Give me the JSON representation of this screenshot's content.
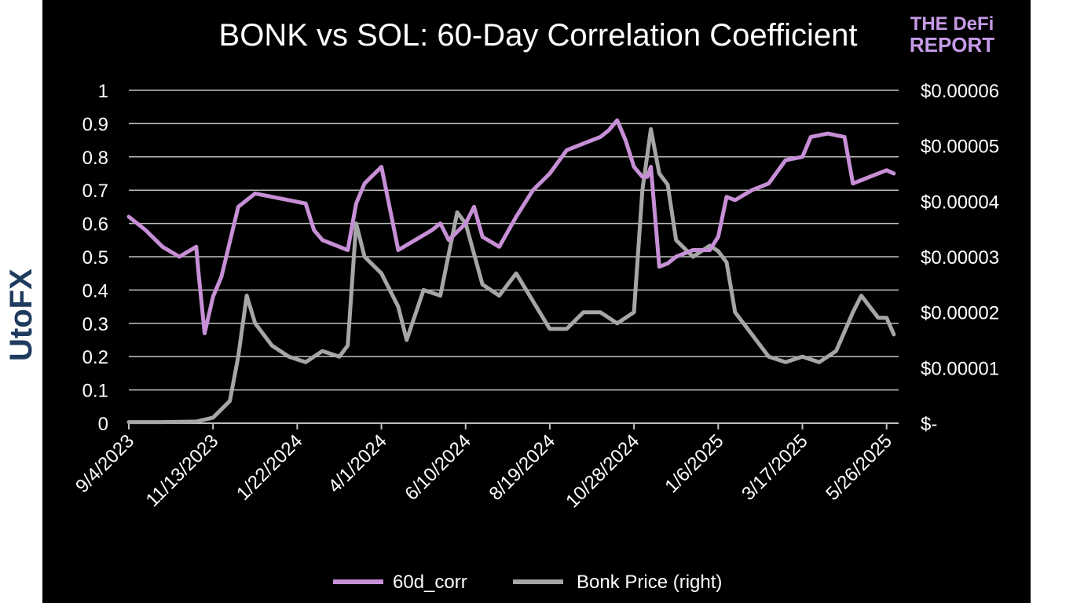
{
  "branding": {
    "logo_line1": "THE DeFi",
    "logo_line2": "REPORT",
    "logo_color": "#c79be8",
    "watermark_text": "UtoFX",
    "watermark_colors": {
      "primary": "#f08a1c",
      "secondary": "#1f3b5e"
    }
  },
  "colors": {
    "background": "#000000",
    "grid": "#bfbfbf",
    "series_corr": "#c78fd6",
    "series_price": "#a6a6a6",
    "text": "#ffffff"
  },
  "chart_data": {
    "type": "line",
    "title": "BONK vs SOL: 60-Day Correlation Coefficient",
    "x_tick_labels": [
      "9/4/2023",
      "11/13/2023",
      "1/22/2024",
      "4/1/2024",
      "6/10/2024",
      "8/19/2024",
      "10/28/2024",
      "1/6/2025",
      "3/17/2025",
      "5/26/2025"
    ],
    "x_range_days_from_first_tick": [
      0,
      640
    ],
    "y_left": {
      "ticks": [
        "1",
        "0.9",
        "0.8",
        "0.7",
        "0.6",
        "0.5",
        "0.4",
        "0.3",
        "0.2",
        "0.1",
        "0"
      ],
      "range": [
        0,
        1
      ]
    },
    "y_right": {
      "ticks": [
        "$0.00006",
        "$0.00005",
        "$0.00004",
        "$0.00003",
        "$0.00002",
        "$0.00001",
        "$-"
      ],
      "range": [
        0,
        6e-05
      ]
    },
    "grid": true,
    "legend_position": "bottom",
    "series": [
      {
        "name": "60d_corr",
        "axis": "left",
        "x": [
          "9/4/2023",
          "9/18/2023",
          "10/2/2023",
          "10/16/2023",
          "10/30/2023",
          "11/1/2023",
          "11/6/2023",
          "11/13/2023",
          "11/20/2023",
          "12/4/2023",
          "12/18/2023",
          "1/1/2024",
          "1/15/2024",
          "1/29/2024",
          "2/5/2024",
          "2/12/2024",
          "2/19/2024",
          "2/26/2024",
          "3/4/2024",
          "3/11/2024",
          "3/18/2024",
          "4/1/2024",
          "4/15/2024",
          "4/29/2024",
          "5/13/2024",
          "5/20/2024",
          "5/27/2024",
          "6/10/2024",
          "6/17/2024",
          "6/24/2024",
          "7/8/2024",
          "7/22/2024",
          "8/5/2024",
          "8/19/2024",
          "9/2/2024",
          "9/16/2024",
          "9/30/2024",
          "10/7/2024",
          "10/14/2024",
          "10/21/2024",
          "10/28/2024",
          "11/4/2024",
          "11/8/2024",
          "11/11/2024",
          "11/18/2024",
          "11/25/2024",
          "12/2/2024",
          "12/16/2024",
          "12/30/2024",
          "1/6/2025",
          "1/13/2025",
          "1/20/2025",
          "2/3/2025",
          "2/17/2025",
          "3/3/2025",
          "3/17/2025",
          "3/24/2025",
          "4/7/2025",
          "4/21/2025",
          "4/28/2025",
          "5/5/2025",
          "5/12/2025",
          "5/26/2025",
          "6/1/2025"
        ],
        "values": [
          0.62,
          0.58,
          0.53,
          0.5,
          0.53,
          0.45,
          0.27,
          0.38,
          0.44,
          0.65,
          0.69,
          0.68,
          0.67,
          0.66,
          0.58,
          0.55,
          0.54,
          0.53,
          0.52,
          0.66,
          0.72,
          0.77,
          0.52,
          0.55,
          0.58,
          0.6,
          0.55,
          0.6,
          0.65,
          0.56,
          0.53,
          0.62,
          0.7,
          0.75,
          0.82,
          0.84,
          0.86,
          0.88,
          0.91,
          0.85,
          0.77,
          0.74,
          0.74,
          0.77,
          0.47,
          0.48,
          0.5,
          0.52,
          0.52,
          0.56,
          0.68,
          0.67,
          0.7,
          0.72,
          0.79,
          0.8,
          0.86,
          0.87,
          0.86,
          0.72,
          0.73,
          0.74,
          0.76,
          0.75
        ]
      },
      {
        "name": "Bonk Price (right)",
        "axis": "right",
        "x": [
          "9/4/2023",
          "10/2/2023",
          "10/30/2023",
          "11/13/2023",
          "11/27/2023",
          "12/4/2023",
          "12/11/2023",
          "12/18/2023",
          "1/1/2024",
          "1/15/2024",
          "1/29/2024",
          "2/12/2024",
          "2/26/2024",
          "3/4/2024",
          "3/11/2024",
          "3/18/2024",
          "4/1/2024",
          "4/15/2024",
          "4/22/2024",
          "5/6/2024",
          "5/20/2024",
          "6/3/2024",
          "6/10/2024",
          "6/24/2024",
          "7/8/2024",
          "7/22/2024",
          "8/5/2024",
          "8/19/2024",
          "9/2/2024",
          "9/16/2024",
          "9/30/2024",
          "10/14/2024",
          "10/28/2024",
          "11/4/2024",
          "11/11/2024",
          "11/18/2024",
          "11/25/2024",
          "12/2/2024",
          "12/16/2024",
          "12/30/2024",
          "1/6/2025",
          "1/13/2025",
          "1/20/2025",
          "2/3/2025",
          "2/17/2025",
          "3/3/2025",
          "3/17/2025",
          "3/31/2025",
          "4/14/2025",
          "4/28/2025",
          "5/5/2025",
          "5/19/2025",
          "5/26/2025",
          "6/1/2025"
        ],
        "values": [
          2e-07,
          2e-07,
          3e-07,
          1e-06,
          4e-06,
          1.2e-05,
          2.3e-05,
          1.8e-05,
          1.4e-05,
          1.2e-05,
          1.1e-05,
          1.3e-05,
          1.2e-05,
          1.4e-05,
          3.6e-05,
          3e-05,
          2.7e-05,
          2.1e-05,
          1.5e-05,
          2.4e-05,
          2.3e-05,
          3.8e-05,
          3.6e-05,
          2.5e-05,
          2.3e-05,
          2.7e-05,
          2.2e-05,
          1.7e-05,
          1.7e-05,
          2e-05,
          2e-05,
          1.8e-05,
          2e-05,
          4.2e-05,
          5.3e-05,
          4.5e-05,
          4.3e-05,
          3.3e-05,
          3e-05,
          3.2e-05,
          3.1e-05,
          2.9e-05,
          2e-05,
          1.6e-05,
          1.2e-05,
          1.1e-05,
          1.2e-05,
          1.1e-05,
          1.3e-05,
          2e-05,
          2.3e-05,
          1.9e-05,
          1.9e-05,
          1.6e-05
        ]
      }
    ]
  }
}
